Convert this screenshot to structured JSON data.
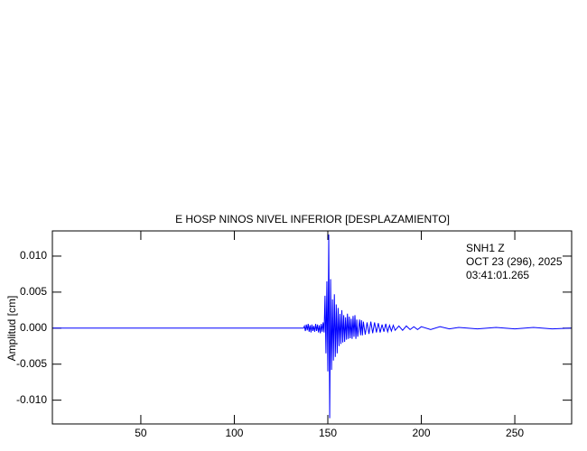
{
  "chart_data": {
    "type": "line",
    "title": "E HOSP NINOS NIVEL INFERIOR [DESPLAZAMIENTO]",
    "ylabel": "Amplitud [cm]",
    "annotations": [
      "SNH1   Z",
      "OCT 23 (296), 2025",
      "03:41:01.265"
    ],
    "x": [
      3,
      137,
      137.5,
      138,
      138.5,
      139,
      139.5,
      140,
      140.5,
      141,
      141.5,
      142,
      142.5,
      143,
      143.5,
      144,
      144.5,
      145,
      145.5,
      146,
      146.5,
      147,
      147.5,
      148,
      148.5,
      149,
      149.5,
      150,
      150.5,
      151,
      151.5,
      152,
      152.5,
      153,
      153.5,
      154,
      154.5,
      155,
      155.5,
      156,
      156.5,
      157,
      157.5,
      158,
      158.5,
      159,
      159.5,
      160,
      160.5,
      161,
      161.5,
      162,
      162.5,
      163,
      163.5,
      164,
      164.5,
      165,
      165.5,
      166,
      167,
      167.5,
      168,
      168.5,
      169,
      170,
      171,
      172,
      173,
      174,
      175,
      176,
      177,
      178,
      179,
      180,
      181,
      182,
      183,
      184,
      185,
      186,
      188,
      190,
      192,
      194,
      196,
      198,
      200,
      205,
      210,
      215,
      220,
      230,
      240,
      250,
      260,
      270,
      280
    ],
    "series": [
      {
        "color": "#0000ff",
        "values": [
          0,
          0,
          0.0003,
          -0.0004,
          0.0005,
          -0.0003,
          0.0006,
          -0.0005,
          0.0004,
          -0.0006,
          0.0005,
          -0.0004,
          0.0003,
          -0.0005,
          0.0006,
          -0.0004,
          0.0005,
          -0.0006,
          0.0004,
          -0.0007,
          0.0006,
          -0.0005,
          0.0008,
          -0.0006,
          0.0045,
          -0.0035,
          0.0065,
          -0.006,
          0.013,
          -0.0125,
          0.0068,
          -0.0058,
          0.004,
          -0.0045,
          0.0047,
          -0.004,
          0.0033,
          -0.0035,
          0.0028,
          -0.0025,
          0.002,
          -0.0022,
          0.0025,
          -0.002,
          0.0018,
          -0.0019,
          0.0015,
          -0.0016,
          0.002,
          -0.0015,
          0.0016,
          -0.0014,
          0.0013,
          -0.0015,
          0.0017,
          -0.0012,
          0.0018,
          -0.0015,
          0.0012,
          -0.0012,
          0.0012,
          -0.001,
          0.0011,
          -0.001,
          0.0009,
          -0.0009,
          0.0008,
          -0.0008,
          0.0009,
          -0.0007,
          0.0008,
          -0.0006,
          0.0007,
          -0.0006,
          0.0005,
          -0.0005,
          0.0006,
          -0.0005,
          0.0004,
          -0.0004,
          0.0004,
          -0.0003,
          0.0003,
          -0.0003,
          0.0003,
          -0.0002,
          0.0002,
          -0.0002,
          0.0002,
          -0.0002,
          0.0002,
          -0.0001,
          0.0001,
          -0.0001,
          0.0001,
          -0.0001,
          0.0001,
          -0.0001,
          0
        ]
      }
    ],
    "xlim": [
      2.7,
      280.4
    ],
    "ylim": [
      -0.0133,
      0.0135
    ],
    "xticks": [
      50,
      100,
      150,
      200,
      250
    ],
    "yticks": [
      {
        "value": -0.01,
        "label": "-0.010"
      },
      {
        "value": -0.005,
        "label": "-0.005"
      },
      {
        "value": 0,
        "label": "0.000"
      },
      {
        "value": 0.005,
        "label": "0.005"
      },
      {
        "value": 0.01,
        "label": "0.010"
      }
    ],
    "grid": false
  }
}
